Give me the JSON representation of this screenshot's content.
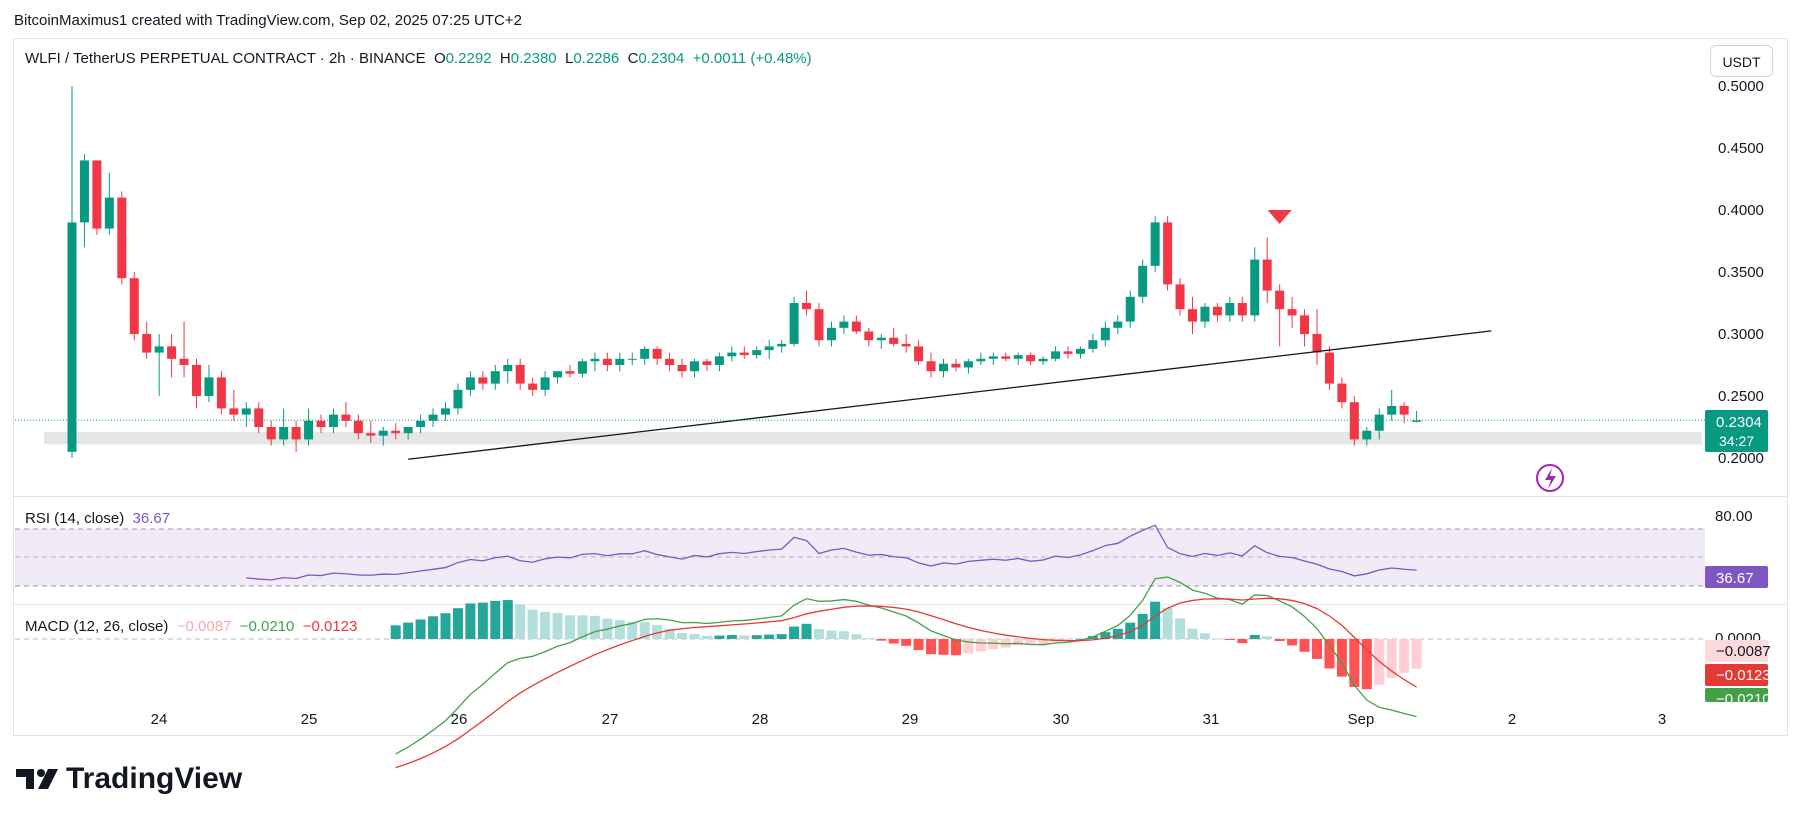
{
  "header": {
    "attribution": "BitcoinMaximus1 created with TradingView.com, Sep 02, 2025 07:25 UTC+2"
  },
  "legend": {
    "symbol": "WLFI / TetherUS PERPETUAL CONTRACT · 2h · BINANCE",
    "o_label": "O",
    "o": "0.2292",
    "h_label": "H",
    "h": "0.2380",
    "l_label": "L",
    "l": "0.2286",
    "c_label": "C",
    "c": "0.2304",
    "change": "+0.0011 (+0.48%)"
  },
  "currency_button": "USDT",
  "price_badge": {
    "price": "0.2304",
    "countdown": "34:27"
  },
  "rsi": {
    "label": "RSI (14, close)",
    "value": "36.67",
    "badge": "36.67",
    "level_label": "80.00"
  },
  "macd": {
    "label": "MACD (12, 26, close)",
    "hist": "−0.0087",
    "macd": "−0.0210",
    "signal": "−0.0123",
    "zero_label": "0.0000",
    "badge_hist": "−0.0087",
    "badge_signal": "−0.0123",
    "badge_macd": "−0.0210"
  },
  "footer": {
    "brand": "TradingView"
  },
  "colors": {
    "up": "#089981",
    "down": "#f23645",
    "rsi": "#7e57c2",
    "macd": "#43a047",
    "signal": "#e53935"
  },
  "chart_data": {
    "type": "candlestick",
    "title": "WLFI / TetherUS PERPETUAL CONTRACT · 2h · BINANCE",
    "interval": "2h",
    "x_ticks": [
      "24",
      "25",
      "26",
      "27",
      "28",
      "29",
      "30",
      "31",
      "Sep",
      "2",
      "3"
    ],
    "y_ticks": [
      "0.2000",
      "0.2500",
      "0.3000",
      "0.3500",
      "0.4000",
      "0.4500",
      "0.5000"
    ],
    "ylim": [
      0.2,
      0.5
    ],
    "candles_ohlc": [
      [
        0.205,
        0.5,
        0.2,
        0.39
      ],
      [
        0.39,
        0.445,
        0.37,
        0.44
      ],
      [
        0.44,
        0.44,
        0.38,
        0.385
      ],
      [
        0.385,
        0.43,
        0.38,
        0.41
      ],
      [
        0.41,
        0.415,
        0.34,
        0.345
      ],
      [
        0.345,
        0.35,
        0.295,
        0.3
      ],
      [
        0.3,
        0.31,
        0.28,
        0.285
      ],
      [
        0.285,
        0.3,
        0.25,
        0.29
      ],
      [
        0.29,
        0.3,
        0.265,
        0.28
      ],
      [
        0.28,
        0.31,
        0.265,
        0.275
      ],
      [
        0.275,
        0.28,
        0.24,
        0.25
      ],
      [
        0.25,
        0.275,
        0.245,
        0.265
      ],
      [
        0.265,
        0.27,
        0.235,
        0.24
      ],
      [
        0.24,
        0.255,
        0.23,
        0.235
      ],
      [
        0.235,
        0.245,
        0.225,
        0.24
      ],
      [
        0.24,
        0.245,
        0.22,
        0.225
      ],
      [
        0.225,
        0.23,
        0.21,
        0.215
      ],
      [
        0.215,
        0.24,
        0.21,
        0.225
      ],
      [
        0.225,
        0.23,
        0.205,
        0.215
      ],
      [
        0.215,
        0.24,
        0.21,
        0.23
      ],
      [
        0.23,
        0.235,
        0.22,
        0.225
      ],
      [
        0.225,
        0.24,
        0.22,
        0.235
      ],
      [
        0.235,
        0.245,
        0.225,
        0.23
      ],
      [
        0.23,
        0.235,
        0.215,
        0.22
      ],
      [
        0.22,
        0.23,
        0.212,
        0.218
      ],
      [
        0.218,
        0.225,
        0.21,
        0.222
      ],
      [
        0.222,
        0.228,
        0.215,
        0.22
      ],
      [
        0.22,
        0.225,
        0.215,
        0.225
      ],
      [
        0.225,
        0.235,
        0.22,
        0.23
      ],
      [
        0.23,
        0.24,
        0.225,
        0.235
      ],
      [
        0.235,
        0.245,
        0.23,
        0.24
      ],
      [
        0.24,
        0.26,
        0.235,
        0.255
      ],
      [
        0.255,
        0.27,
        0.25,
        0.265
      ],
      [
        0.265,
        0.27,
        0.255,
        0.26
      ],
      [
        0.26,
        0.275,
        0.255,
        0.27
      ],
      [
        0.27,
        0.28,
        0.26,
        0.275
      ],
      [
        0.275,
        0.28,
        0.255,
        0.26
      ],
      [
        0.26,
        0.265,
        0.25,
        0.255
      ],
      [
        0.255,
        0.27,
        0.25,
        0.265
      ],
      [
        0.265,
        0.27,
        0.26,
        0.27
      ],
      [
        0.27,
        0.275,
        0.265,
        0.268
      ],
      [
        0.268,
        0.28,
        0.265,
        0.278
      ],
      [
        0.278,
        0.285,
        0.27,
        0.28
      ],
      [
        0.28,
        0.285,
        0.27,
        0.275
      ],
      [
        0.275,
        0.285,
        0.27,
        0.28
      ],
      [
        0.28,
        0.285,
        0.275,
        0.28
      ],
      [
        0.28,
        0.29,
        0.275,
        0.288
      ],
      [
        0.288,
        0.29,
        0.275,
        0.28
      ],
      [
        0.28,
        0.285,
        0.27,
        0.275
      ],
      [
        0.275,
        0.28,
        0.265,
        0.27
      ],
      [
        0.27,
        0.28,
        0.265,
        0.278
      ],
      [
        0.278,
        0.28,
        0.27,
        0.275
      ],
      [
        0.275,
        0.285,
        0.27,
        0.282
      ],
      [
        0.282,
        0.29,
        0.278,
        0.285
      ],
      [
        0.285,
        0.29,
        0.28,
        0.283
      ],
      [
        0.283,
        0.29,
        0.28,
        0.287
      ],
      [
        0.287,
        0.295,
        0.28,
        0.29
      ],
      [
        0.29,
        0.295,
        0.285,
        0.292
      ],
      [
        0.292,
        0.33,
        0.29,
        0.325
      ],
      [
        0.325,
        0.335,
        0.315,
        0.32
      ],
      [
        0.32,
        0.325,
        0.29,
        0.295
      ],
      [
        0.295,
        0.31,
        0.29,
        0.305
      ],
      [
        0.305,
        0.315,
        0.3,
        0.31
      ],
      [
        0.31,
        0.315,
        0.3,
        0.302
      ],
      [
        0.302,
        0.305,
        0.29,
        0.295
      ],
      [
        0.295,
        0.3,
        0.288,
        0.297
      ],
      [
        0.297,
        0.305,
        0.29,
        0.292
      ],
      [
        0.292,
        0.3,
        0.285,
        0.29
      ],
      [
        0.29,
        0.295,
        0.275,
        0.278
      ],
      [
        0.278,
        0.285,
        0.265,
        0.27
      ],
      [
        0.27,
        0.28,
        0.265,
        0.276
      ],
      [
        0.276,
        0.28,
        0.27,
        0.273
      ],
      [
        0.273,
        0.28,
        0.268,
        0.278
      ],
      [
        0.278,
        0.285,
        0.275,
        0.28
      ],
      [
        0.28,
        0.285,
        0.275,
        0.282
      ],
      [
        0.282,
        0.285,
        0.278,
        0.28
      ],
      [
        0.28,
        0.285,
        0.275,
        0.283
      ],
      [
        0.283,
        0.285,
        0.275,
        0.278
      ],
      [
        0.278,
        0.282,
        0.275,
        0.28
      ],
      [
        0.28,
        0.29,
        0.278,
        0.286
      ],
      [
        0.286,
        0.29,
        0.28,
        0.284
      ],
      [
        0.284,
        0.29,
        0.28,
        0.288
      ],
      [
        0.288,
        0.3,
        0.285,
        0.295
      ],
      [
        0.295,
        0.31,
        0.29,
        0.305
      ],
      [
        0.305,
        0.315,
        0.3,
        0.31
      ],
      [
        0.31,
        0.335,
        0.305,
        0.33
      ],
      [
        0.33,
        0.36,
        0.325,
        0.355
      ],
      [
        0.355,
        0.395,
        0.35,
        0.39
      ],
      [
        0.39,
        0.395,
        0.335,
        0.34
      ],
      [
        0.34,
        0.345,
        0.315,
        0.32
      ],
      [
        0.32,
        0.33,
        0.3,
        0.31
      ],
      [
        0.31,
        0.325,
        0.305,
        0.322
      ],
      [
        0.322,
        0.325,
        0.31,
        0.315
      ],
      [
        0.315,
        0.33,
        0.31,
        0.325
      ],
      [
        0.325,
        0.33,
        0.31,
        0.315
      ],
      [
        0.315,
        0.37,
        0.31,
        0.36
      ],
      [
        0.36,
        0.378,
        0.325,
        0.335
      ],
      [
        0.335,
        0.34,
        0.29,
        0.32
      ],
      [
        0.32,
        0.33,
        0.305,
        0.315
      ],
      [
        0.315,
        0.32,
        0.29,
        0.3
      ],
      [
        0.3,
        0.32,
        0.275,
        0.285
      ],
      [
        0.285,
        0.29,
        0.255,
        0.26
      ],
      [
        0.26,
        0.265,
        0.24,
        0.245
      ],
      [
        0.245,
        0.25,
        0.21,
        0.215
      ],
      [
        0.215,
        0.225,
        0.21,
        0.222
      ],
      [
        0.222,
        0.24,
        0.215,
        0.235
      ],
      [
        0.235,
        0.255,
        0.23,
        0.242
      ],
      [
        0.242,
        0.245,
        0.228,
        0.235
      ],
      [
        0.2292,
        0.238,
        0.2286,
        0.2304
      ]
    ],
    "overlays": {
      "trendline": {
        "start_index": 27,
        "start_price": 0.199,
        "end_index": 114,
        "end_price": 0.3025
      },
      "support_zone": [
        0.211,
        0.221
      ],
      "sell_marker_index": 97,
      "last_price_line": 0.2304
    },
    "rsi": {
      "period": 14,
      "level": 80,
      "last": 36.67
    },
    "macd": {
      "fast": 12,
      "slow": 26,
      "hist": -0.0087,
      "macd": -0.021,
      "signal": -0.0123
    }
  }
}
